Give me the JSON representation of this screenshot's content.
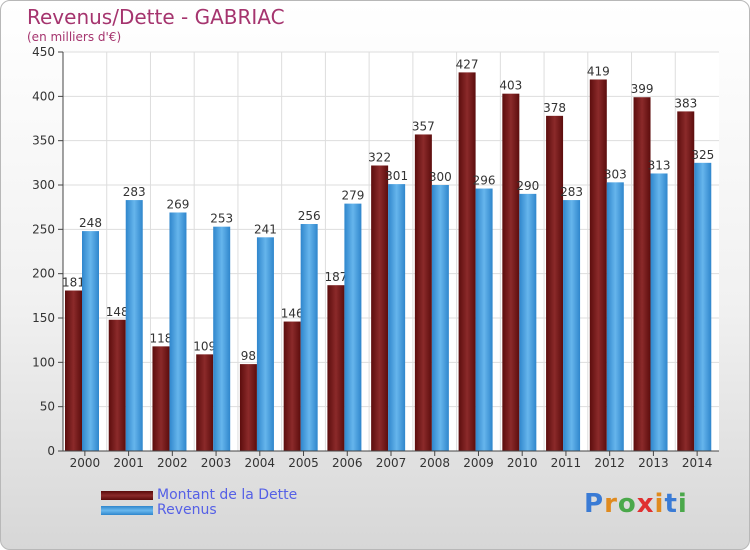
{
  "header": {
    "title": "Revenus/Dette - GABRIAC",
    "subtitle": "(en milliers d'€)"
  },
  "legend": {
    "items": [
      {
        "label": "Montant de la Dette",
        "color": "#7a1a1a"
      },
      {
        "label": "Revenus",
        "color": "#4a9fe0"
      }
    ]
  },
  "logo": {
    "letters": [
      "P",
      "r",
      "o",
      "x",
      "i",
      "t",
      "i"
    ],
    "colors": [
      "#3a7bd5",
      "#e08a1e",
      "#4aa84a",
      "#e03030",
      "#e08a1e",
      "#3a7bd5",
      "#4aa84a"
    ]
  },
  "chart_data": {
    "type": "bar",
    "title": "Revenus/Dette - GABRIAC",
    "subtitle": "(en milliers d'€)",
    "categories": [
      "2000",
      "2001",
      "2002",
      "2003",
      "2004",
      "2005",
      "2006",
      "2007",
      "2008",
      "2009",
      "2010",
      "2011",
      "2012",
      "2013",
      "2014"
    ],
    "series": [
      {
        "name": "Montant de la Dette",
        "color": "#7a1a1a",
        "values": [
          181,
          148,
          118,
          109,
          98,
          146,
          187,
          322,
          357,
          427,
          403,
          378,
          419,
          399,
          383
        ]
      },
      {
        "name": "Revenus",
        "color": "#4a9fe0",
        "values": [
          248,
          283,
          269,
          253,
          241,
          256,
          279,
          301,
          300,
          296,
          290,
          283,
          303,
          313,
          325
        ]
      }
    ],
    "ylim": [
      0,
      450
    ],
    "yticks": [
      0,
      50,
      100,
      150,
      200,
      250,
      300,
      350,
      400,
      450
    ],
    "grid": true,
    "legend_position": "bottom-left"
  }
}
